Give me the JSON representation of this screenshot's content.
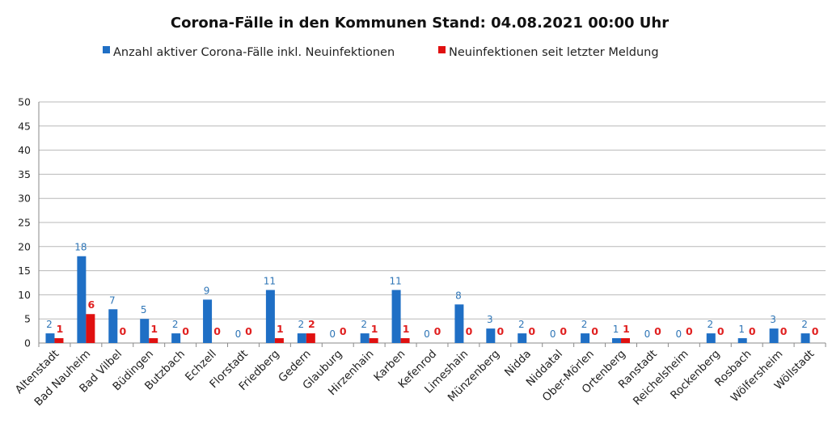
{
  "chart_data": {
    "type": "bar",
    "title": "Corona-Fälle in den Kommunen Stand: 04.08.2021 00:00 Uhr",
    "legend_position": "top",
    "grid": true,
    "ylim": [
      0,
      50
    ],
    "yticks": [
      "0",
      "5",
      "10",
      "15",
      "20",
      "25",
      "30",
      "35",
      "40",
      "45",
      "50"
    ],
    "categories": [
      "Altenstadt",
      "Bad Nauheim",
      "Bad Vilbel",
      "Büdingen",
      "Butzbach",
      "Echzell",
      "Florstadt",
      "Friedberg",
      "Gedern",
      "Glauburg",
      "Hirzenhain",
      "Karben",
      "Kefenrod",
      "Limeshain",
      "Münzenberg",
      "Nidda",
      "Niddatal",
      "Ober-Mörlen",
      "Ortenberg",
      "Ranstadt",
      "Reichelsheim",
      "Rockenberg",
      "Rosbach",
      "Wölfersheim",
      "Wöllstadt"
    ],
    "series": [
      {
        "name": "Anzahl aktiver Corona-Fälle inkl. Neuinfektionen",
        "color": "#1f6fc5",
        "values": [
          2,
          18,
          7,
          5,
          2,
          9,
          0,
          11,
          2,
          0,
          2,
          11,
          0,
          8,
          3,
          2,
          0,
          2,
          1,
          0,
          0,
          2,
          1,
          3,
          2
        ]
      },
      {
        "name": "Neuinfektionen seit letzter Meldung",
        "color": "#e01010",
        "values": [
          1,
          6,
          0,
          1,
          0,
          0,
          0,
          1,
          2,
          0,
          1,
          1,
          0,
          0,
          0,
          0,
          0,
          0,
          1,
          0,
          0,
          0,
          0,
          0,
          0
        ]
      }
    ]
  }
}
